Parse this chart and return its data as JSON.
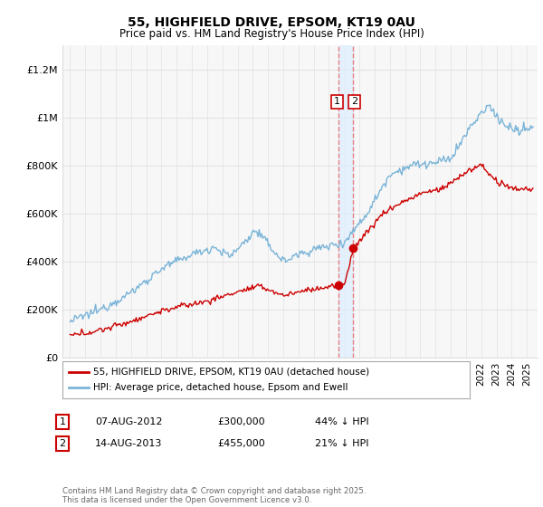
{
  "title": "55, HIGHFIELD DRIVE, EPSOM, KT19 0AU",
  "subtitle": "Price paid vs. HM Land Registry's House Price Index (HPI)",
  "ylabel_ticks": [
    "£0",
    "£200K",
    "£400K",
    "£600K",
    "£800K",
    "£1M",
    "£1.2M"
  ],
  "ytick_values": [
    0,
    200000,
    400000,
    600000,
    800000,
    1000000,
    1200000
  ],
  "ylim": [
    0,
    1300000
  ],
  "xlim_start": 1994.5,
  "xlim_end": 2025.7,
  "hpi_color": "#7ab4d8",
  "price_color": "#cc0000",
  "vline_color": "#e88080",
  "vband_color": "#ddeeff",
  "legend_label_price": "55, HIGHFIELD DRIVE, EPSOM, KT19 0AU (detached house)",
  "legend_label_hpi": "HPI: Average price, detached house, Epsom and Ewell",
  "sale1_date": "07-AUG-2012",
  "sale1_price": "£300,000",
  "sale1_pct": "44% ↓ HPI",
  "sale1_year": 2012.6,
  "sale1_value": 300000,
  "sale2_date": "14-AUG-2013",
  "sale2_price": "£455,000",
  "sale2_pct": "21% ↓ HPI",
  "sale2_year": 2013.6,
  "sale2_value": 455000,
  "footnote": "Contains HM Land Registry data © Crown copyright and database right 2025.\nThis data is licensed under the Open Government Licence v3.0.",
  "bg_color": "#ffffff",
  "grid_color": "#dddddd",
  "chart_facecolor": "#f7f7f7"
}
